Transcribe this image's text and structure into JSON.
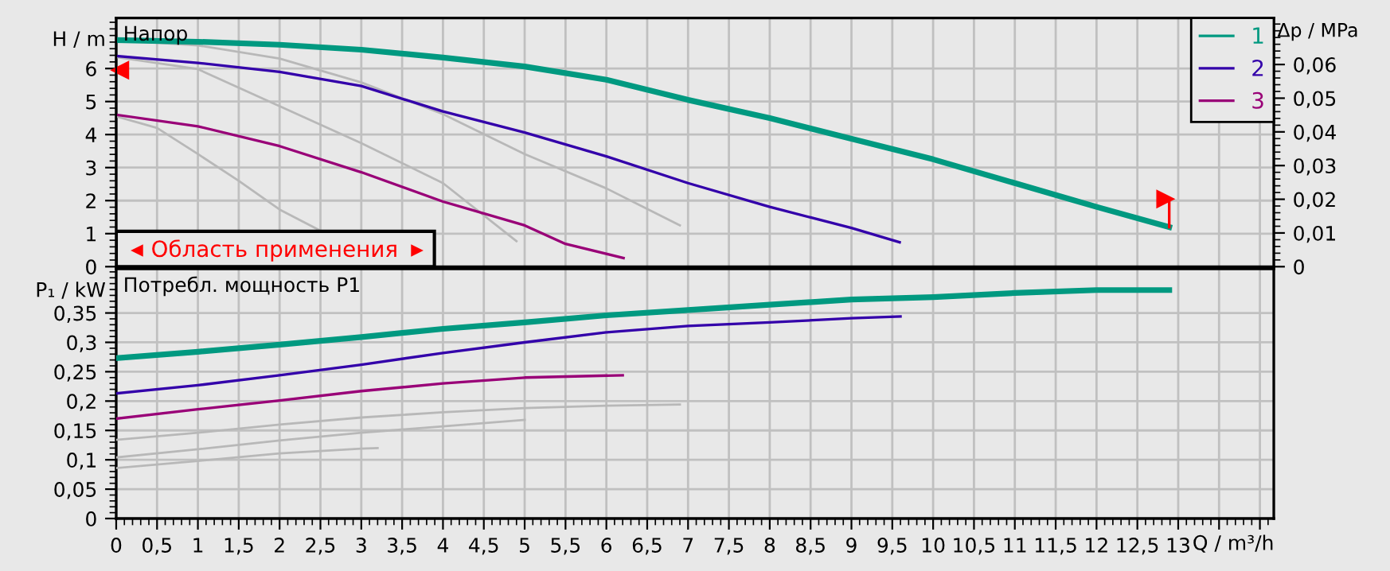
{
  "chart_data": [
    {
      "type": "line",
      "ylabel": "H / m",
      "y2label": "Δp / MPa",
      "xlim": [
        0,
        14.17
      ],
      "ylim": [
        0,
        7.53
      ],
      "y2lim": [
        0,
        0.0738
      ],
      "xticks": [
        0,
        0.5,
        1,
        1.5,
        2,
        2.5,
        3,
        3.5,
        4,
        4.5,
        5,
        5.5,
        6,
        6.5,
        7,
        7.5,
        8,
        8.5,
        9,
        9.5,
        10,
        10.5,
        11,
        11.5,
        12,
        12.5,
        13,
        13.5,
        14
      ],
      "yticks": [
        0,
        1,
        2,
        3,
        4,
        5,
        6
      ],
      "y2ticks": [
        0,
        {
          "value": 0.01,
          "label": "0,01"
        },
        {
          "value": 0.02,
          "label": "0,02"
        },
        {
          "value": 0.03,
          "label": "0,03"
        },
        {
          "value": 0.04,
          "label": "0,04"
        },
        {
          "value": 0.05,
          "label": "0,05"
        },
        {
          "value": 0.06,
          "label": "0,06"
        }
      ],
      "tick_labels": "y",
      "grid": true,
      "legend": "top right",
      "annotations": [
        "Напор",
        "Область применения"
      ],
      "series": [
        {
          "color": "#b8b8b8",
          "x": [
            0,
            1,
            2,
            3,
            4,
            5,
            6,
            6.9
          ],
          "values": [
            6.86,
            6.7,
            6.3,
            5.58,
            4.62,
            3.41,
            2.37,
            1.25
          ]
        },
        {
          "color": "#b8b8b8",
          "x": [
            0,
            1,
            2,
            3,
            4,
            4.9
          ],
          "values": [
            6.35,
            5.98,
            4.86,
            3.74,
            2.53,
            0.77
          ]
        },
        {
          "color": "#b8b8b8",
          "x": [
            0,
            0.5,
            1,
            1.5,
            2,
            2.5
          ],
          "values": [
            4.55,
            4.2,
            3.41,
            2.6,
            1.73,
            1.09
          ]
        },
        {
          "name": "1",
          "color": "#009980",
          "x": [
            0,
            1,
            2,
            3,
            4,
            5,
            6,
            7,
            8,
            9,
            10,
            11,
            12,
            12.89
          ],
          "values": [
            6.86,
            6.81,
            6.72,
            6.57,
            6.33,
            6.06,
            5.66,
            5.05,
            4.5,
            3.87,
            3.25,
            2.53,
            1.81,
            1.2
          ]
        },
        {
          "name": "2",
          "color": "#3300aa",
          "x": [
            0,
            1,
            2,
            3,
            4,
            5,
            6,
            7,
            8,
            8.5,
            9,
            9.59
          ],
          "values": [
            6.38,
            6.17,
            5.9,
            5.47,
            4.7,
            4.06,
            3.34,
            2.53,
            1.81,
            1.49,
            1.17,
            0.74
          ]
        },
        {
          "name": "3",
          "color": "#990077",
          "x": [
            0,
            1,
            2,
            3,
            4,
            5,
            5.5,
            6.21
          ],
          "values": [
            4.6,
            4.25,
            3.65,
            2.86,
            1.97,
            1.25,
            0.69,
            0.26
          ]
        }
      ]
    },
    {
      "type": "line",
      "ylabel": "P₁ / kW",
      "xlabel": "Q / m³/h",
      "xlim": [
        0,
        14.17
      ],
      "ylim": [
        0,
        0.425
      ],
      "xticks": [
        0,
        {
          "value": 0.5,
          "label": "0,5"
        },
        1,
        {
          "value": 1.5,
          "label": "1,5"
        },
        2,
        {
          "value": 2.5,
          "label": "2,5"
        },
        3,
        {
          "value": 3.5,
          "label": "3,5"
        },
        4,
        {
          "value": 4.5,
          "label": "4,5"
        },
        5,
        {
          "value": 5.5,
          "label": "5,5"
        },
        6,
        {
          "value": 6.5,
          "label": "6,5"
        },
        7,
        {
          "value": 7.5,
          "label": "7,5"
        },
        8,
        {
          "value": 8.5,
          "label": "8,5"
        },
        9,
        {
          "value": 9.5,
          "label": "9,5"
        },
        10,
        {
          "value": 10.5,
          "label": "10,5"
        },
        11,
        {
          "value": 11.5,
          "label": "11,5"
        },
        12,
        {
          "value": 12.5,
          "label": "12,5"
        },
        13,
        {
          "value": 13.5,
          "label": null
        },
        {
          "value": 14,
          "label": null
        }
      ],
      "yticks": [
        0,
        {
          "value": 0.05,
          "label": "0,05"
        },
        {
          "value": 0.1,
          "label": "0,1"
        },
        {
          "value": 0.15,
          "label": "0,15"
        },
        {
          "value": 0.2,
          "label": "0,2"
        },
        {
          "value": 0.25,
          "label": "0,25"
        },
        {
          "value": 0.3,
          "label": "0,3"
        },
        {
          "value": 0.35,
          "label": "0,35"
        }
      ],
      "grid": true,
      "annotations": [
        "Потребл. мощность P1"
      ],
      "series": [
        {
          "color": "#b8b8b8",
          "x": [
            0,
            1,
            2,
            3,
            4,
            5,
            6,
            6.9
          ],
          "values": [
            0.134,
            0.146,
            0.16,
            0.172,
            0.181,
            0.188,
            0.192,
            0.194
          ]
        },
        {
          "color": "#b8b8b8",
          "x": [
            0,
            1,
            2,
            3,
            4,
            5
          ],
          "values": [
            0.104,
            0.118,
            0.133,
            0.146,
            0.157,
            0.168
          ]
        },
        {
          "color": "#b8b8b8",
          "x": [
            0,
            1,
            2,
            3,
            3.2
          ],
          "values": [
            0.086,
            0.098,
            0.111,
            0.119,
            0.12
          ]
        },
        {
          "color": "#009980",
          "x": [
            0,
            1,
            2,
            3,
            4,
            5,
            6,
            7,
            8,
            9,
            10,
            11,
            12,
            12.89
          ],
          "values": [
            0.273,
            0.284,
            0.296,
            0.309,
            0.323,
            0.334,
            0.346,
            0.355,
            0.364,
            0.373,
            0.377,
            0.384,
            0.389,
            0.389
          ]
        },
        {
          "color": "#3300aa",
          "x": [
            0,
            1,
            2,
            3,
            4,
            5,
            6,
            7,
            8,
            9,
            9.6
          ],
          "values": [
            0.213,
            0.227,
            0.244,
            0.262,
            0.282,
            0.3,
            0.317,
            0.328,
            0.334,
            0.341,
            0.344
          ]
        },
        {
          "color": "#990077",
          "x": [
            0,
            1,
            2,
            3,
            4,
            5,
            6.2
          ],
          "values": [
            0.17,
            0.186,
            0.201,
            0.217,
            0.23,
            0.24,
            0.244
          ]
        }
      ]
    }
  ]
}
